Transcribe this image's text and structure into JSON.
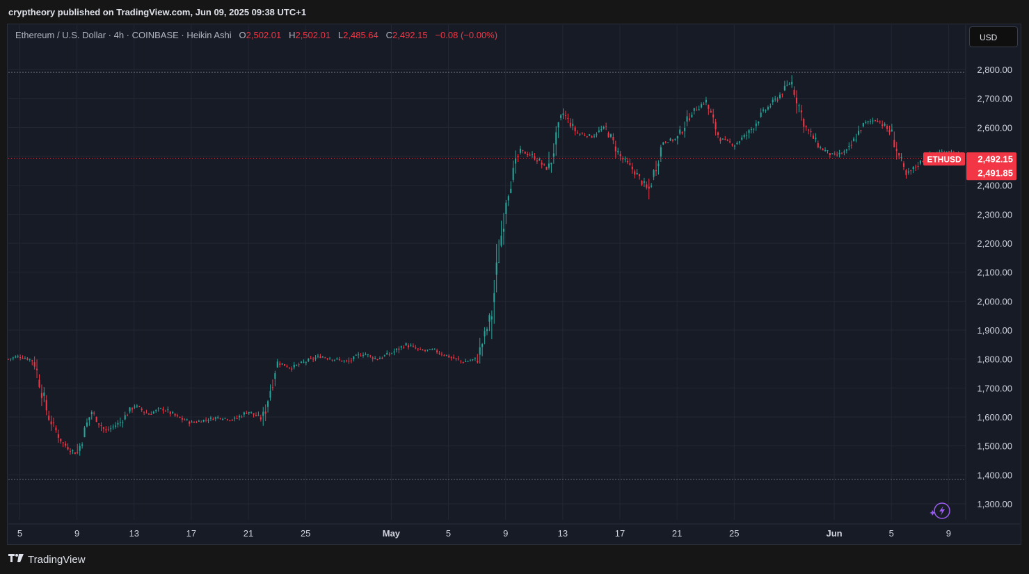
{
  "header": {
    "published": "cryptheory published on TradingView.com, Jun 09, 2025 09:38 UTC+1"
  },
  "legend": {
    "symbol": "Ethereum / U.S. Dollar · 4h · COINBASE · Heikin Ashi",
    "o_label": "O",
    "o_value": "2,502.01",
    "h_label": "H",
    "h_value": "2,502.01",
    "l_label": "L",
    "l_value": "2,485.64",
    "c_label": "C",
    "c_value": "2,492.15",
    "change": "−0.08 (−0.00%)"
  },
  "currency_button": "USD",
  "price_tags": {
    "symbol_tag": "ETHUSD",
    "last_price": "2,492.15",
    "second_price": "2,491.85"
  },
  "footer": {
    "brand": "TradingView"
  },
  "colors": {
    "up": "#26a69a",
    "down": "#f23645",
    "background": "#171b26",
    "grid": "#232733"
  },
  "chart_data": {
    "type": "candlestick",
    "series_style": "Heikin Ashi",
    "ylim": [
      1250,
      2850
    ],
    "y_ticks": [
      1300,
      1400,
      1500,
      1600,
      1700,
      1800,
      1900,
      2000,
      2100,
      2200,
      2300,
      2400,
      2600,
      2700,
      2800
    ],
    "y_tick_labels": [
      "1,300.00",
      "1,400.00",
      "1,500.00",
      "1,600.00",
      "1,700.00",
      "1,800.00",
      "1,900.00",
      "2,000.00",
      "2,100.00",
      "2,200.00",
      "2,300.00",
      "2,400.00",
      "2,600.00",
      "2,700.00",
      "2,800.00"
    ],
    "x_tick_labels": [
      "5",
      "9",
      "13",
      "17",
      "21",
      "25",
      "May",
      "5",
      "9",
      "13",
      "17",
      "21",
      "25",
      "Jun",
      "5",
      "9"
    ],
    "x_tick_days": [
      5,
      9,
      13,
      17,
      21,
      25,
      31,
      35,
      39,
      43,
      47,
      51,
      55,
      62,
      66,
      70
    ],
    "x_day_range": [
      4.2,
      71.2
    ],
    "dotted_levels": [
      2790,
      1385
    ],
    "last_price": 2492.15,
    "daily_closes": [
      [
        4.2,
        1800
      ],
      [
        5,
        1810
      ],
      [
        6,
        1795
      ],
      [
        7,
        1600
      ],
      [
        8,
        1510
      ],
      [
        9,
        1470
      ],
      [
        10,
        1620
      ],
      [
        11,
        1550
      ],
      [
        12,
        1580
      ],
      [
        13,
        1640
      ],
      [
        14,
        1610
      ],
      [
        15,
        1630
      ],
      [
        16,
        1600
      ],
      [
        17,
        1580
      ],
      [
        18,
        1590
      ],
      [
        19,
        1600
      ],
      [
        20,
        1590
      ],
      [
        21,
        1620
      ],
      [
        22,
        1590
      ],
      [
        23,
        1790
      ],
      [
        24,
        1770
      ],
      [
        25,
        1790
      ],
      [
        26,
        1810
      ],
      [
        27,
        1800
      ],
      [
        28,
        1790
      ],
      [
        29,
        1820
      ],
      [
        30,
        1800
      ],
      [
        31,
        1820
      ],
      [
        32,
        1850
      ],
      [
        33,
        1830
      ],
      [
        34,
        1830
      ],
      [
        35,
        1810
      ],
      [
        36,
        1790
      ],
      [
        37,
        1800
      ],
      [
        38,
        1950
      ],
      [
        39,
        2350
      ],
      [
        40,
        2520
      ],
      [
        41,
        2500
      ],
      [
        42,
        2450
      ],
      [
        43,
        2650
      ],
      [
        44,
        2580
      ],
      [
        45,
        2570
      ],
      [
        46,
        2600
      ],
      [
        47,
        2500
      ],
      [
        48,
        2450
      ],
      [
        49,
        2380
      ],
      [
        50,
        2550
      ],
      [
        51,
        2560
      ],
      [
        52,
        2650
      ],
      [
        53,
        2690
      ],
      [
        54,
        2560
      ],
      [
        55,
        2540
      ],
      [
        56,
        2580
      ],
      [
        57,
        2650
      ],
      [
        58,
        2700
      ],
      [
        59,
        2760
      ],
      [
        60,
        2600
      ],
      [
        61,
        2530
      ],
      [
        62,
        2500
      ],
      [
        63,
        2520
      ],
      [
        64,
        2610
      ],
      [
        65,
        2630
      ],
      [
        66,
        2580
      ],
      [
        67,
        2430
      ],
      [
        68,
        2480
      ],
      [
        69,
        2510
      ],
      [
        70,
        2520
      ],
      [
        71.2,
        2492.15
      ]
    ]
  }
}
